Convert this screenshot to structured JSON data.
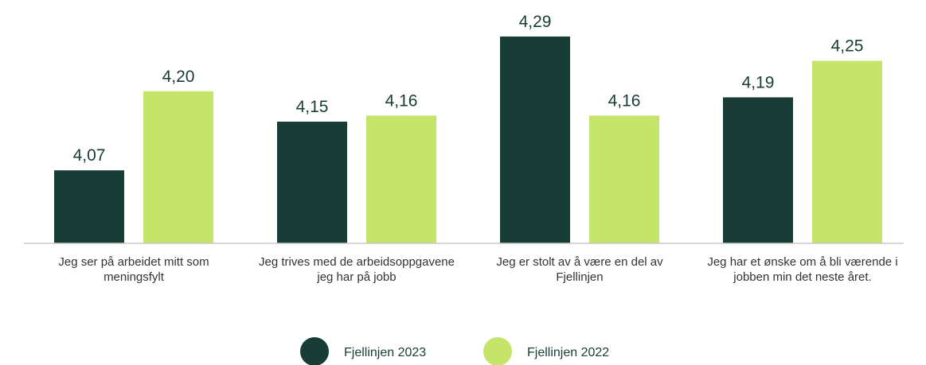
{
  "chart_data": {
    "type": "bar",
    "categories": [
      "Jeg ser på arbeidet mitt som meningsfylt",
      "Jeg trives med de arbeidsoppgavene jeg har på jobb",
      "Jeg er stolt av å være en del av Fjellinjen",
      "Jeg har et ønske om å bli værende i jobben min det neste året."
    ],
    "series": [
      {
        "name": "Fjellinjen 2023",
        "color": "#173d36",
        "values": [
          4.07,
          4.15,
          4.29,
          4.19
        ],
        "value_labels": [
          "4,07",
          "4,15",
          "4,29",
          "4,19"
        ]
      },
      {
        "name": "Fjellinjen 2022",
        "color": "#c5e46a",
        "values": [
          4.2,
          4.16,
          4.16,
          4.25
        ],
        "value_labels": [
          "4,20",
          "4,16",
          "4,16",
          "4,25"
        ]
      }
    ],
    "ylim": [
      3.95,
      4.35
    ],
    "grid": false,
    "legend": "bottom"
  }
}
